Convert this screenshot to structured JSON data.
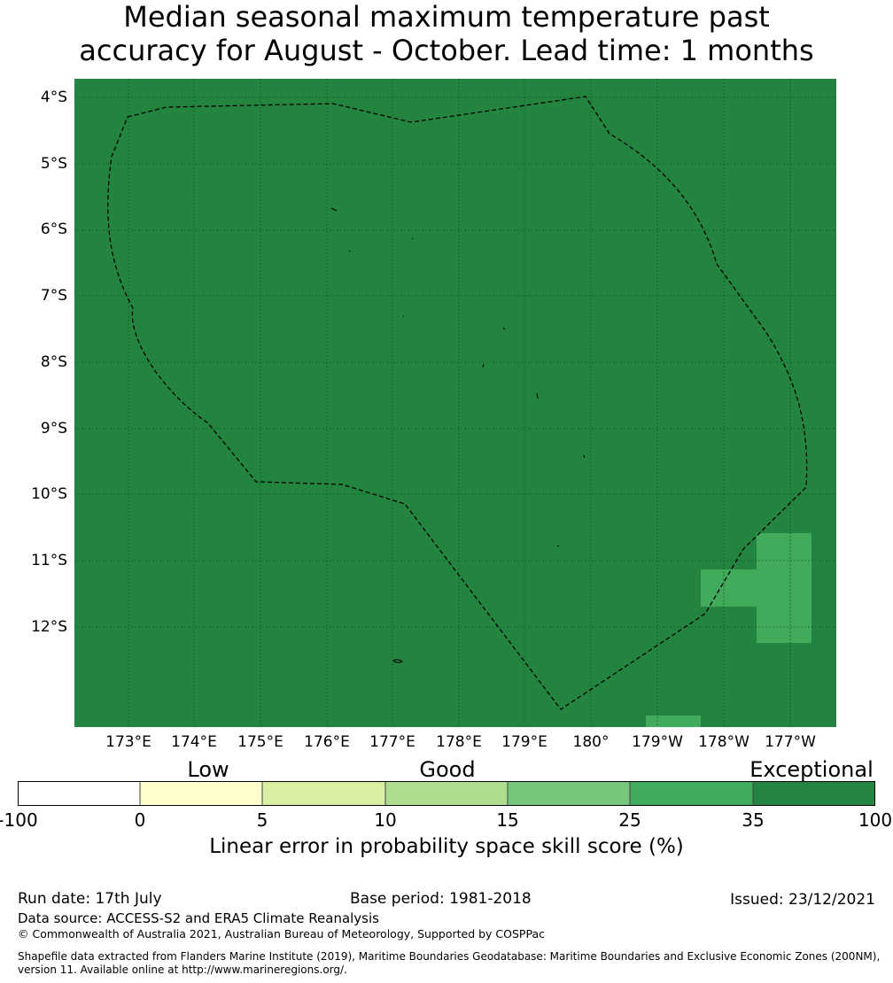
{
  "title": {
    "line1": "Median seasonal maximum temperature past",
    "line2": "accuracy for August - October. Lead time: 1 months"
  },
  "map": {
    "background_color": "#23843f",
    "higher_skill_cell_color": "#41aa5b",
    "latitude_labels": [
      "4°S",
      "5°S",
      "6°S",
      "7°S",
      "8°S",
      "9°S",
      "10°S",
      "11°S",
      "12°S"
    ],
    "longitude_labels": [
      "173°E",
      "174°E",
      "175°E",
      "176°E",
      "177°E",
      "178°E",
      "179°E",
      "180°",
      "179°W",
      "178°W",
      "177°W"
    ],
    "boundary_style": "dashed black line (EEZ)"
  },
  "legend": {
    "categories": [
      "Low",
      "Good",
      "Exceptional"
    ],
    "ticks": [
      "-100",
      "0",
      "5",
      "10",
      "15",
      "25",
      "35",
      "100"
    ],
    "colors": [
      "#ffffff",
      "#ffffcc",
      "#d9f0a3",
      "#addd8e",
      "#78c679",
      "#41ab5d",
      "#238443"
    ],
    "label": "Linear error in probability space skill score (%)"
  },
  "footer": {
    "run_date": "Run date: 17th July",
    "base_period": "Base period: 1981-2018",
    "issued": "Issued: 23/12/2021",
    "data_source": "Data source: ACCESS-S2 and ERA5 Climate Reanalysis",
    "copyright": "© Commonwealth of Australia 2021, Australian Bureau of Meteorology, Supported by COSPPac",
    "shapefile_line1": "Shapefile data extracted from Flanders Marine Institute (2019), Maritime Boundaries Geodatabase: Maritime Boundaries and Exclusive Economic Zones (200NM),",
    "shapefile_line2": "version 11. Available online at http://www.marineregions.org/."
  }
}
